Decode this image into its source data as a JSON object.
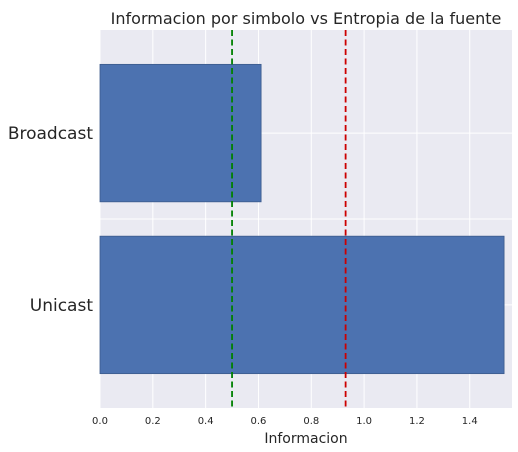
{
  "chart_data": {
    "type": "bar",
    "orientation": "horizontal",
    "title": "Informacion por simbolo vs Entropia de la fuente",
    "xlabel": "Informacion",
    "ylabel": "",
    "categories": [
      "Broadcast",
      "Unicast"
    ],
    "values": [
      0.61,
      1.53
    ],
    "xlim": [
      0,
      1.56
    ],
    "xticks": [
      0.0,
      0.2,
      0.4,
      0.6,
      0.8,
      1.0,
      1.2,
      1.4
    ],
    "xtick_labels": [
      "0.0",
      "0.2",
      "0.4",
      "0.6",
      "0.8",
      "1.0",
      "1.2",
      "1.4"
    ],
    "reference_lines": [
      {
        "x": 0.5,
        "color": "#008000",
        "style": "dashed"
      },
      {
        "x": 0.93,
        "color": "#cc0000",
        "style": "dashed"
      }
    ],
    "bar_color": "#4c72b0",
    "background_color": "#eaeaf2",
    "grid": true
  }
}
